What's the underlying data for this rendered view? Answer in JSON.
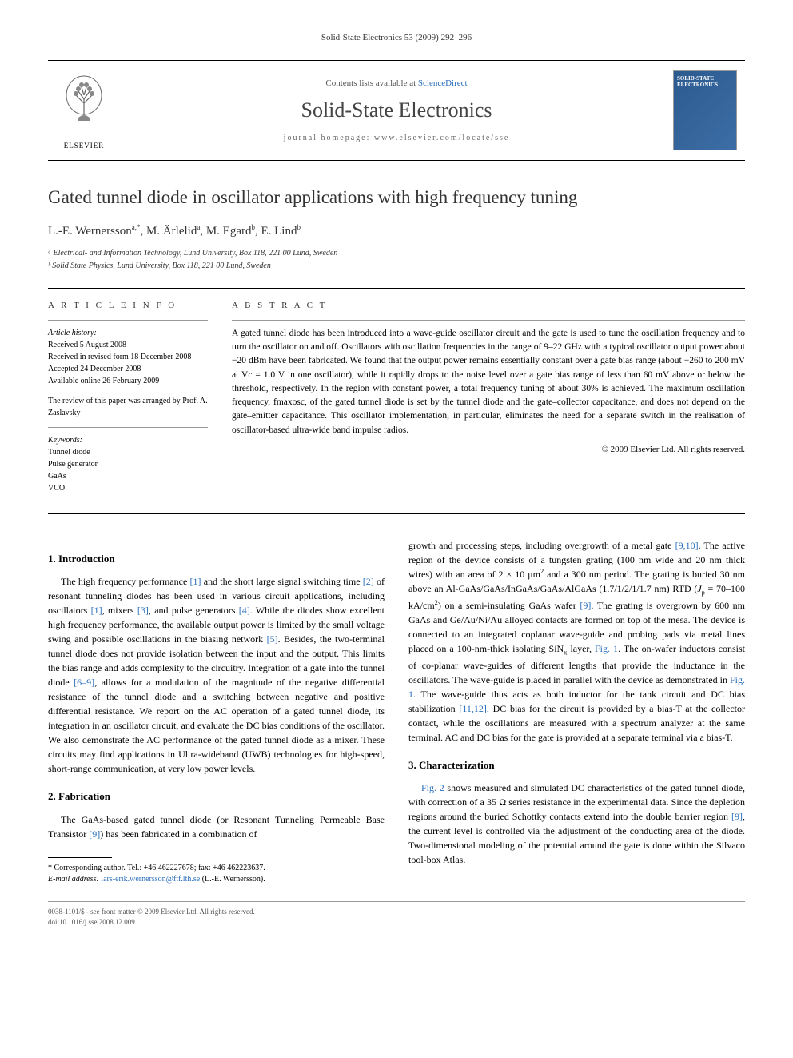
{
  "page_header": "Solid-State Electronics 53 (2009) 292–296",
  "masthead": {
    "contents_prefix": "Contents lists available at ",
    "contents_link": "ScienceDirect",
    "journal_name": "Solid-State Electronics",
    "homepage_prefix": "journal homepage: ",
    "homepage_url": "www.elsevier.com/locate/sse",
    "publisher": "ELSEVIER",
    "cover_title": "SOLID-STATE ELECTRONICS"
  },
  "article": {
    "title": "Gated tunnel diode in oscillator applications with high frequency tuning",
    "authors_html": "L.-E. Wernersson<sup>a,*</sup>, M. Ärlelid<sup>a</sup>, M. Egard<sup>b</sup>, E. Lind<sup>b</sup>",
    "affiliations": [
      "ᵃ Electrical- and Information Technology, Lund University, Box 118, 221 00 Lund, Sweden",
      "ᵇ Solid State Physics, Lund University, Box 118, 221 00 Lund, Sweden"
    ]
  },
  "article_info": {
    "heading": "A R T I C L E   I N F O",
    "history_label": "Article history:",
    "history": [
      "Received 5 August 2008",
      "Received in revised form 18 December 2008",
      "Accepted 24 December 2008",
      "Available online 26 February 2009"
    ],
    "review_note": "The review of this paper was arranged by Prof. A. Zaslavsky",
    "keywords_label": "Keywords:",
    "keywords": [
      "Tunnel diode",
      "Pulse generator",
      "GaAs",
      "VCO"
    ]
  },
  "abstract": {
    "heading": "A B S T R A C T",
    "text": "A gated tunnel diode has been introduced into a wave-guide oscillator circuit and the gate is used to tune the oscillation frequency and to turn the oscillator on and off. Oscillators with oscillation frequencies in the range of 9–22 GHz with a typical oscillator output power about −20 dBm have been fabricated. We found that the output power remains essentially constant over a gate bias range (about −260 to 200 mV at Vc = 1.0 V in one oscillator), while it rapidly drops to the noise level over a gate bias range of less than 60 mV above or below the threshold, respectively. In the region with constant power, a total frequency tuning of about 30% is achieved. The maximum oscillation frequency, fmaxosc, of the gated tunnel diode is set by the tunnel diode and the gate–collector capacitance, and does not depend on the gate–emitter capacitance. This oscillator implementation, in particular, eliminates the need for a separate switch in the realisation of oscillator-based ultra-wide band impulse radios.",
    "copyright": "© 2009 Elsevier Ltd. All rights reserved."
  },
  "sections": {
    "intro_heading": "1. Introduction",
    "intro_text": "The high frequency performance [1] and the short large signal switching time [2] of resonant tunneling diodes has been used in various circuit applications, including oscillators [1], mixers [3], and pulse generators [4]. While the diodes show excellent high frequency performance, the available output power is limited by the small voltage swing and possible oscillations in the biasing network [5]. Besides, the two-terminal tunnel diode does not provide isolation between the input and the output. This limits the bias range and adds complexity to the circuitry. Integration of a gate into the tunnel diode [6–9], allows for a modulation of the magnitude of the negative differential resistance of the tunnel diode and a switching between negative and positive differential resistance. We report on the AC operation of a gated tunnel diode, its integration in an oscillator circuit, and evaluate the DC bias conditions of the oscillator. We also demonstrate the AC performance of the gated tunnel diode as a mixer. These circuits may find applications in Ultra-wideband (UWB) technologies for high-speed, short-range communication, at very low power levels.",
    "fab_heading": "2. Fabrication",
    "fab_text_1": "The GaAs-based gated tunnel diode (or Resonant Tunneling Permeable Base Transistor [9]) has been fabricated in a combination of",
    "fab_text_2": "growth and processing steps, including overgrowth of a metal gate [9,10]. The active region of the device consists of a tungsten grating (100 nm wide and 20 nm thick wires) with an area of 2 × 10 μm² and a 300 nm period. The grating is buried 30 nm above an Al-GaAs/GaAs/InGaAs/GaAs/AlGaAs (1.7/1/2/1/1.7 nm) RTD (Jp = 70–100 kA/cm²) on a semi-insulating GaAs wafer [9]. The grating is overgrown by 600 nm GaAs and Ge/Au/Ni/Au alloyed contacts are formed on top of the mesa. The device is connected to an integrated coplanar wave-guide and probing pads via metal lines placed on a 100-nm-thick isolating SiNx layer, Fig. 1. The on-wafer inductors consist of co-planar wave-guides of different lengths that provide the inductance in the oscillators. The wave-guide is placed in parallel with the device as demonstrated in Fig. 1. The wave-guide thus acts as both inductor for the tank circuit and DC bias stabilization [11,12]. DC bias for the circuit is provided by a bias-T at the collector contact, while the oscillations are measured with a spectrum analyzer at the same terminal. AC and DC bias for the gate is provided at a separate terminal via a bias-T.",
    "char_heading": "3. Characterization",
    "char_text": "Fig. 2 shows measured and simulated DC characteristics of the gated tunnel diode, with correction of a 35 Ω series resistance in the experimental data. Since the depletion regions around the buried Schottky contacts extend into the double barrier region [9], the current level is controlled via the adjustment of the conducting area of the diode. Two-dimensional modeling of the potential around the gate is done within the Silvaco tool-box Atlas."
  },
  "footnote": {
    "corresponding": "* Corresponding author. Tel.: +46 462227678; fax: +46 462223637.",
    "email_label": "E-mail address:",
    "email": "lars-erik.wernersson@ftf.lth.se",
    "email_author": "(L.-E. Wernersson)."
  },
  "bottom": {
    "left": "0038-1101/$ - see front matter © 2009 Elsevier Ltd. All rights reserved.",
    "doi": "doi:10.1016/j.sse.2008.12.009"
  },
  "colors": {
    "link": "#2a6ebb",
    "text": "#000000",
    "muted": "#555555",
    "cover_bg": "#2b5a8f"
  }
}
